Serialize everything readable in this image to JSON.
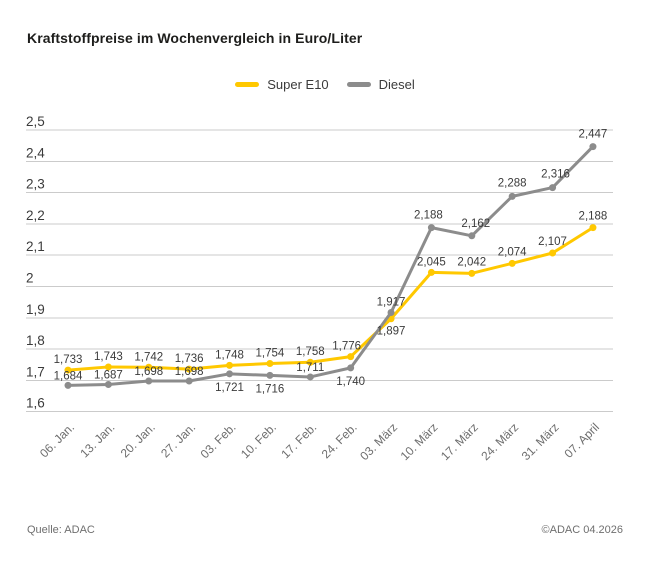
{
  "title": "Kraftstoffpreise im Wochenvergleich in Euro/Liter",
  "footer": {
    "source": "Quelle: ADAC",
    "copyright": "©ADAC 04.2026"
  },
  "colors": {
    "super_e10_yellow": "#FFC800",
    "diesel_gray": "#8C8C8C",
    "gridline": "#CBCBCB",
    "axis_text": "#3b3b3b",
    "xaxis_text": "#6e6e6e"
  },
  "chart_data": {
    "type": "line",
    "title": "Kraftstoffpreise im Wochenvergleich in Euro/Liter",
    "unit": "Euro/Liter",
    "categories": [
      "06. Jan.",
      "13. Jan.",
      "20. Jan.",
      "27. Jan.",
      "03. Feb.",
      "10. Feb.",
      "17. Feb.",
      "24. Feb.",
      "03. März",
      "10. März",
      "17. März",
      "24. März",
      "31. März",
      "07. April"
    ],
    "series": [
      {
        "name": "Super E10",
        "color": "#FFC800",
        "values": [
          1.733,
          1.743,
          1.742,
          1.736,
          1.748,
          1.754,
          1.758,
          1.776,
          1.897,
          2.045,
          2.042,
          2.074,
          2.107,
          2.188
        ],
        "labels": [
          "1,733",
          "1,743",
          "1,742",
          "1,736",
          "1,748",
          "1,754",
          "1,758",
          "1,776",
          "1,897",
          "2,045",
          "2,042",
          "2,074",
          "2,107",
          "2,188"
        ]
      },
      {
        "name": "Diesel",
        "color": "#8C8C8C",
        "values": [
          1.684,
          1.687,
          1.698,
          1.698,
          1.721,
          1.716,
          1.711,
          1.74,
          1.917,
          2.188,
          2.162,
          2.288,
          2.316,
          2.447
        ],
        "labels": [
          "1,684",
          "1,687",
          "1,698",
          "1,698",
          "1,721",
          "1,716",
          "1,711",
          "1,740",
          "1,917",
          "2,188",
          "2,162",
          "2,288",
          "2,316",
          "2,447"
        ]
      }
    ],
    "ylim": [
      1.6,
      2.5
    ],
    "yticks": {
      "values": [
        1.6,
        1.7,
        1.8,
        1.9,
        2.0,
        2.1,
        2.2,
        2.3,
        2.4,
        2.5
      ],
      "labels": [
        "1,6",
        "1,7",
        "1,8",
        "1,9",
        "2",
        "2,1",
        "2,2",
        "2,3",
        "2,4",
        "2,5"
      ]
    },
    "grid": "horizontal",
    "legend_position": "top-center",
    "data_labels": true
  }
}
